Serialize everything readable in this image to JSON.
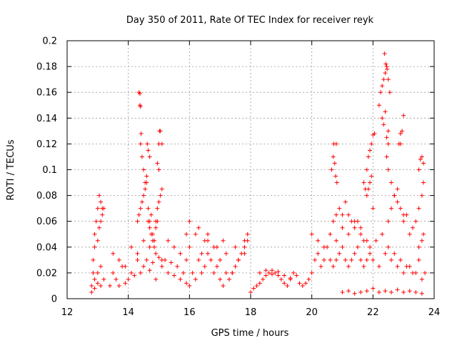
{
  "chart_data": {
    "type": "scatter",
    "title": "Day 350 of 2011, Rate Of TEC Index for receiver reyk",
    "xlabel": "GPS time / hours",
    "ylabel": "ROTI / TECUs",
    "xlim": [
      12,
      24
    ],
    "ylim": [
      0,
      0.2
    ],
    "x_ticks": [
      "12",
      "14",
      "16",
      "18",
      "20",
      "22",
      "24"
    ],
    "y_ticks": [
      "0",
      "0.02",
      "0.04",
      "0.06",
      "0.08",
      "0.1",
      "0.12",
      "0.14",
      "0.16",
      "0.18",
      "0.2"
    ],
    "grid": true,
    "marker": "+",
    "color": "#ff0000",
    "series": [
      {
        "x": [
          12.8,
          12.85,
          12.9,
          12.95,
          13.0,
          13.05,
          13.1,
          13.15,
          12.85,
          12.9,
          13.0,
          13.05,
          13.1,
          13.15,
          13.2,
          12.9,
          13.0,
          13.1,
          12.8,
          12.9,
          13.0,
          13.1,
          13.2,
          13.4,
          13.5,
          13.6,
          13.7,
          13.8,
          13.9,
          14.0,
          14.1,
          14.2,
          14.3,
          14.4,
          14.5,
          14.6,
          14.7,
          14.8,
          14.9,
          15.0,
          15.1,
          15.2,
          15.3,
          15.4,
          15.5,
          15.6,
          15.7,
          15.8,
          15.9,
          13.5,
          13.7,
          13.9,
          14.1,
          14.3,
          14.5,
          14.7,
          14.9,
          15.1,
          15.3,
          15.5,
          15.7,
          15.9,
          14.35,
          14.38,
          14.4,
          14.42,
          14.45,
          14.5,
          14.55,
          14.6,
          14.65,
          14.7,
          14.75,
          14.8,
          14.85,
          14.9,
          14.95,
          15.0,
          15.05,
          15.1,
          14.3,
          14.35,
          14.4,
          14.45,
          14.5,
          14.55,
          14.6,
          14.65,
          14.7,
          14.75,
          14.8,
          14.85,
          14.9,
          14.95,
          15.0,
          15.05,
          15.1,
          14.38,
          14.4,
          14.62,
          14.65,
          14.7,
          14.95,
          15.0,
          15.02,
          16.0,
          16.1,
          16.2,
          16.3,
          16.4,
          16.5,
          16.6,
          16.7,
          16.8,
          16.9,
          17.0,
          17.1,
          17.2,
          17.3,
          17.4,
          17.5,
          17.6,
          17.7,
          17.8,
          17.9,
          16.0,
          16.2,
          16.4,
          16.6,
          16.8,
          17.0,
          17.2,
          17.4,
          17.6,
          17.8,
          15.9,
          16.0,
          16.3,
          16.5,
          16.6,
          16.9,
          17.1,
          17.5,
          17.8,
          17.9,
          18.0,
          18.1,
          18.2,
          18.3,
          18.4,
          18.5,
          18.6,
          18.7,
          18.8,
          18.9,
          19.0,
          19.1,
          19.2,
          19.3,
          19.4,
          19.5,
          19.6,
          19.7,
          19.8,
          19.9,
          18.3,
          18.5,
          18.7,
          18.9,
          19.1,
          19.3,
          20.0,
          20.1,
          20.2,
          20.3,
          20.4,
          20.5,
          20.6,
          20.7,
          20.8,
          20.9,
          21.0,
          21.1,
          21.2,
          21.3,
          21.4,
          21.5,
          21.6,
          21.7,
          21.8,
          21.9,
          20.0,
          20.2,
          20.4,
          20.6,
          20.8,
          21.0,
          21.2,
          21.4,
          21.6,
          21.8,
          20.65,
          20.7,
          20.72,
          20.75,
          20.78,
          20.8,
          20.82,
          20.7,
          20.8,
          20.9,
          21.0,
          21.1,
          21.2,
          21.3,
          21.4,
          21.5,
          21.6,
          21.7,
          21.0,
          21.2,
          21.4,
          21.6,
          21.8,
          22.0,
          22.2,
          22.4,
          22.6,
          22.8,
          23.0,
          23.2,
          23.4,
          23.6,
          21.8,
          21.85,
          21.9,
          21.95,
          22.0,
          22.05,
          21.7,
          21.75,
          21.8,
          21.85,
          21.9,
          21.95,
          22.0,
          22.2,
          22.25,
          22.3,
          22.35,
          22.4,
          22.45,
          22.5,
          22.55,
          22.3,
          22.35,
          22.4,
          22.45,
          22.5,
          22.38,
          22.42,
          22.46,
          22.5,
          22.45,
          22.5,
          22.6,
          22.7,
          22.8,
          22.9,
          23.0,
          22.85,
          22.9,
          22.95,
          22.5,
          22.6,
          22.7,
          22.8,
          22.9,
          23.0,
          23.0,
          23.1,
          23.2,
          23.3,
          23.4,
          23.5,
          23.6,
          23.65,
          23.5,
          23.55,
          23.6,
          23.65,
          23.5,
          23.6,
          23.65,
          22.0,
          22.2,
          22.4,
          22.6,
          22.8,
          23.0,
          23.2,
          23.4,
          23.6,
          21.9,
          22.1,
          22.3,
          22.5,
          22.7,
          22.9,
          23.1,
          23.3,
          23.5,
          23.7
        ],
        "y": [
          0.01,
          0.03,
          0.05,
          0.06,
          0.07,
          0.08,
          0.075,
          0.07,
          0.02,
          0.04,
          0.045,
          0.055,
          0.06,
          0.065,
          0.07,
          0.015,
          0.02,
          0.01,
          0.005,
          0.008,
          0.012,
          0.025,
          0.015,
          0.01,
          0.02,
          0.015,
          0.01,
          0.025,
          0.012,
          0.015,
          0.02,
          0.018,
          0.03,
          0.02,
          0.025,
          0.03,
          0.022,
          0.028,
          0.015,
          0.032,
          0.025,
          0.03,
          0.02,
          0.028,
          0.018,
          0.025,
          0.015,
          0.02,
          0.012,
          0.035,
          0.03,
          0.025,
          0.04,
          0.035,
          0.045,
          0.04,
          0.035,
          0.03,
          0.045,
          0.04,
          0.035,
          0.03,
          0.16,
          0.15,
          0.12,
          0.128,
          0.11,
          0.1,
          0.09,
          0.095,
          0.07,
          0.06,
          0.065,
          0.05,
          0.045,
          0.055,
          0.06,
          0.1,
          0.13,
          0.12,
          0.06,
          0.065,
          0.07,
          0.075,
          0.08,
          0.085,
          0.09,
          0.06,
          0.055,
          0.05,
          0.045,
          0.04,
          0.06,
          0.07,
          0.075,
          0.08,
          0.085,
          0.159,
          0.149,
          0.12,
          0.115,
          0.11,
          0.105,
          0.12,
          0.13,
          0.01,
          0.02,
          0.015,
          0.03,
          0.02,
          0.025,
          0.035,
          0.03,
          0.02,
          0.025,
          0.015,
          0.01,
          0.02,
          0.015,
          0.02,
          0.025,
          0.03,
          0.035,
          0.04,
          0.045,
          0.04,
          0.05,
          0.035,
          0.045,
          0.04,
          0.03,
          0.035,
          0.02,
          0.03,
          0.035,
          0.05,
          0.06,
          0.055,
          0.045,
          0.05,
          0.04,
          0.045,
          0.04,
          0.045,
          0.05,
          0.005,
          0.008,
          0.01,
          0.012,
          0.015,
          0.018,
          0.02,
          0.022,
          0.02,
          0.018,
          0.015,
          0.012,
          0.01,
          0.015,
          0.02,
          0.018,
          0.012,
          0.01,
          0.012,
          0.015,
          0.02,
          0.022,
          0.019,
          0.021,
          0.018,
          0.016,
          0.02,
          0.03,
          0.035,
          0.025,
          0.03,
          0.04,
          0.03,
          0.025,
          0.03,
          0.035,
          0.04,
          0.03,
          0.025,
          0.03,
          0.035,
          0.04,
          0.03,
          0.025,
          0.03,
          0.035,
          0.05,
          0.045,
          0.04,
          0.05,
          0.045,
          0.055,
          0.05,
          0.06,
          0.055,
          0.045,
          0.1,
          0.11,
          0.12,
          0.105,
          0.095,
          0.12,
          0.09,
          0.06,
          0.065,
          0.07,
          0.065,
          0.075,
          0.065,
          0.06,
          0.055,
          0.06,
          0.05,
          0.045,
          0.005,
          0.006,
          0.004,
          0.005,
          0.006,
          0.008,
          0.005,
          0.006,
          0.005,
          0.007,
          0.005,
          0.006,
          0.005,
          0.004,
          0.1,
          0.11,
          0.115,
          0.12,
          0.127,
          0.128,
          0.09,
          0.085,
          0.08,
          0.085,
          0.09,
          0.095,
          0.07,
          0.15,
          0.16,
          0.165,
          0.17,
          0.175,
          0.18,
          0.17,
          0.16,
          0.14,
          0.135,
          0.145,
          0.125,
          0.12,
          0.19,
          0.182,
          0.178,
          0.13,
          0.11,
          0.1,
          0.09,
          0.08,
          0.085,
          0.12,
          0.142,
          0.12,
          0.128,
          0.13,
          0.06,
          0.07,
          0.08,
          0.075,
          0.07,
          0.065,
          0.06,
          0.065,
          0.05,
          0.055,
          0.06,
          0.07,
          0.08,
          0.09,
          0.1,
          0.108,
          0.11,
          0.105,
          0.04,
          0.045,
          0.05,
          0.03,
          0.025,
          0.035,
          0.03,
          0.025,
          0.02,
          0.025,
          0.02,
          0.015,
          0.04,
          0.045,
          0.05,
          0.04,
          0.035,
          0.03,
          0.025,
          0.02,
          0.03,
          0.02
        ]
      }
    ]
  }
}
